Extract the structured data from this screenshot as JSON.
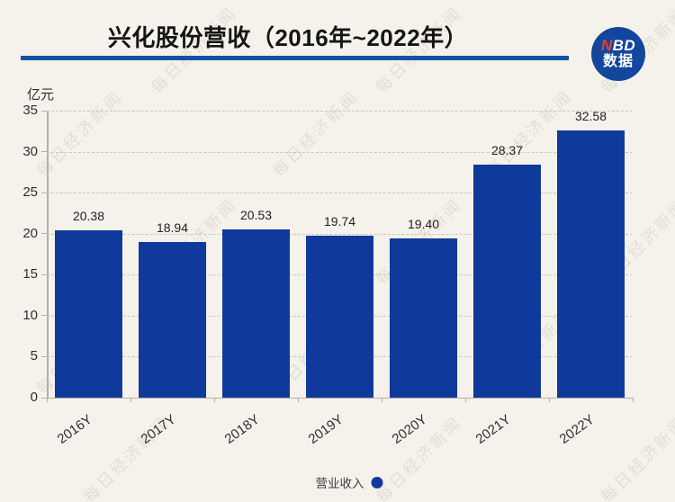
{
  "chart_data": {
    "type": "bar",
    "title": "兴化股份营收（2016年~2022年）",
    "ylabel": "亿元",
    "categories": [
      "2016Y",
      "2017Y",
      "2018Y",
      "2019Y",
      "2020Y",
      "2021Y",
      "2022Y"
    ],
    "series": [
      {
        "name": "营业收入",
        "values": [
          20.38,
          18.94,
          20.53,
          19.74,
          19.4,
          28.37,
          32.58
        ],
        "value_labels": [
          "20.38",
          "18.94",
          "20.53",
          "19.74",
          "19.40",
          "28.37",
          "32.58"
        ]
      }
    ],
    "ylim": [
      0,
      35
    ],
    "ytick_step": 5,
    "yticks": [
      0,
      5,
      10,
      15,
      20,
      25,
      30,
      35
    ],
    "grid": "horizontal-dashed",
    "legend_position": "bottom"
  },
  "logo": {
    "brand_n": "N",
    "brand_bd": "BD",
    "caption": "数据"
  },
  "watermark": {
    "text": "每日经济新闻"
  },
  "colors": {
    "background": "#f5f2eb",
    "bar": "#10399c",
    "accent_line": "#1452a5",
    "logo_bg": "#15469d",
    "logo_n": "#e8402f",
    "grid_line": "#ccc7bb",
    "axis_line": "#b3afa4",
    "text": "#2f2f2f",
    "title_text": "#151515",
    "watermark": "#cfc8b6"
  }
}
